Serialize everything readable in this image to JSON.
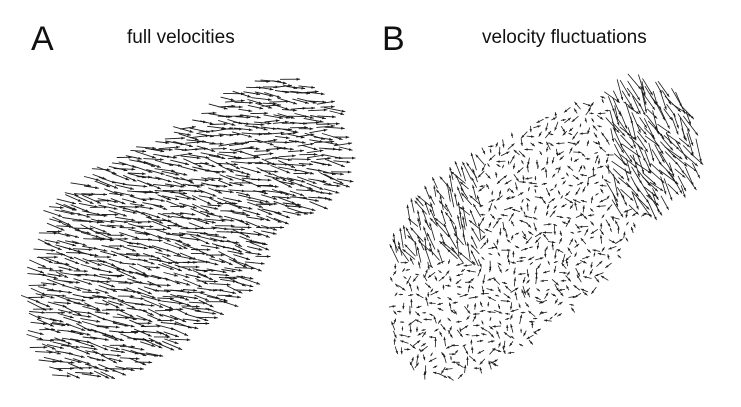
{
  "panels": [
    {
      "letter": "A",
      "title": "full velocities",
      "field": "full"
    },
    {
      "letter": "B",
      "title": "velocity fluctuations",
      "field": "fluctuation"
    }
  ],
  "colors": {
    "arrow": "#1a1a1a",
    "background": "#ffffff"
  }
}
